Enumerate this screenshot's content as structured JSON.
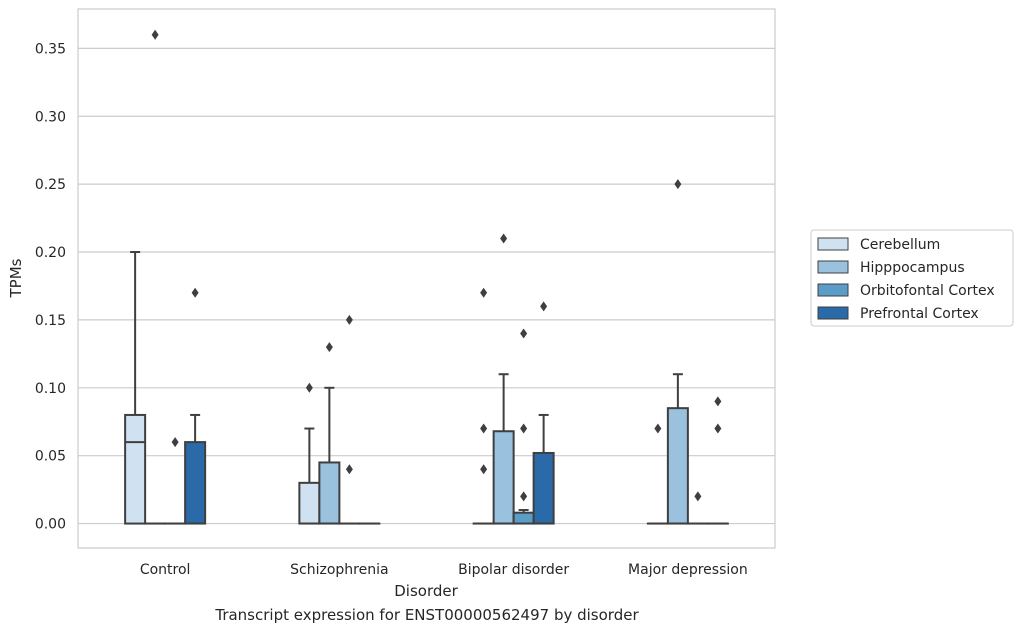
{
  "caption": "Transcript expression for ENST00000562497 by disorder",
  "chart_data": {
    "type": "box",
    "xlabel": "Disorder",
    "ylabel": "TPMs",
    "categories": [
      "Control",
      "Schizophrenia",
      "Bipolar disorder",
      "Major depression"
    ],
    "ylim": [
      -0.018,
      0.379
    ],
    "yticks": [
      0.0,
      0.05,
      0.1,
      0.15,
      0.2,
      0.25,
      0.3,
      0.35
    ],
    "ytick_labels": [
      "0.00",
      "0.05",
      "0.10",
      "0.15",
      "0.20",
      "0.25",
      "0.30",
      "0.35"
    ],
    "grid": "y",
    "legend_position": "right",
    "series": [
      {
        "name": "Cerebellum",
        "color": "#d0e1f2",
        "boxes": [
          {
            "q1": 0.0,
            "median": 0.06,
            "q3": 0.08,
            "whisker_low": 0.0,
            "whisker_high": 0.2,
            "outliers": []
          },
          {
            "q1": 0.0,
            "median": 0.0,
            "q3": 0.03,
            "whisker_low": 0.0,
            "whisker_high": 0.07,
            "outliers": [
              0.1
            ]
          },
          {
            "q1": 0.0,
            "median": 0.0,
            "q3": 0.0,
            "whisker_low": 0.0,
            "whisker_high": 0.0,
            "outliers": [
              0.04,
              0.07,
              0.17
            ]
          },
          {
            "q1": 0.0,
            "median": 0.0,
            "q3": 0.0,
            "whisker_low": 0.0,
            "whisker_high": 0.0,
            "outliers": [
              0.07
            ]
          }
        ]
      },
      {
        "name": "Hipppocampus",
        "color": "#9ac1dd",
        "boxes": [
          {
            "q1": 0.0,
            "median": 0.0,
            "q3": 0.0,
            "whisker_low": 0.0,
            "whisker_high": 0.0,
            "outliers": [
              0.36
            ]
          },
          {
            "q1": 0.0,
            "median": 0.0,
            "q3": 0.045,
            "whisker_low": 0.0,
            "whisker_high": 0.1,
            "outliers": [
              0.13
            ]
          },
          {
            "q1": 0.0,
            "median": 0.0,
            "q3": 0.068,
            "whisker_low": 0.0,
            "whisker_high": 0.11,
            "outliers": [
              0.21
            ]
          },
          {
            "q1": 0.0,
            "median": 0.0,
            "q3": 0.085,
            "whisker_low": 0.0,
            "whisker_high": 0.11,
            "outliers": [
              0.25
            ]
          }
        ]
      },
      {
        "name": "Orbitofontal Cortex",
        "color": "#5b9cc9",
        "boxes": [
          {
            "q1": 0.0,
            "median": 0.0,
            "q3": 0.0,
            "whisker_low": 0.0,
            "whisker_high": 0.0,
            "outliers": [
              0.06
            ]
          },
          {
            "q1": 0.0,
            "median": 0.0,
            "q3": 0.0,
            "whisker_low": 0.0,
            "whisker_high": 0.0,
            "outliers": [
              0.04,
              0.15
            ]
          },
          {
            "q1": 0.0,
            "median": 0.0,
            "q3": 0.008,
            "whisker_low": 0.0,
            "whisker_high": 0.01,
            "outliers": [
              0.02,
              0.07,
              0.14
            ]
          },
          {
            "q1": 0.0,
            "median": 0.0,
            "q3": 0.0,
            "whisker_low": 0.0,
            "whisker_high": 0.0,
            "outliers": [
              0.02
            ]
          }
        ]
      },
      {
        "name": "Prefrontal Cortex",
        "color": "#2a6aa8",
        "boxes": [
          {
            "q1": 0.0,
            "median": 0.0,
            "q3": 0.06,
            "whisker_low": 0.0,
            "whisker_high": 0.08,
            "outliers": [
              0.17
            ]
          },
          {
            "q1": 0.0,
            "median": 0.0,
            "q3": 0.0,
            "whisker_low": 0.0,
            "whisker_high": 0.0,
            "outliers": []
          },
          {
            "q1": 0.0,
            "median": 0.0,
            "q3": 0.052,
            "whisker_low": 0.0,
            "whisker_high": 0.08,
            "outliers": [
              0.16
            ]
          },
          {
            "q1": 0.0,
            "median": 0.0,
            "q3": 0.0,
            "whisker_low": 0.0,
            "whisker_high": 0.0,
            "outliers": [
              0.07,
              0.09
            ]
          }
        ]
      }
    ]
  }
}
